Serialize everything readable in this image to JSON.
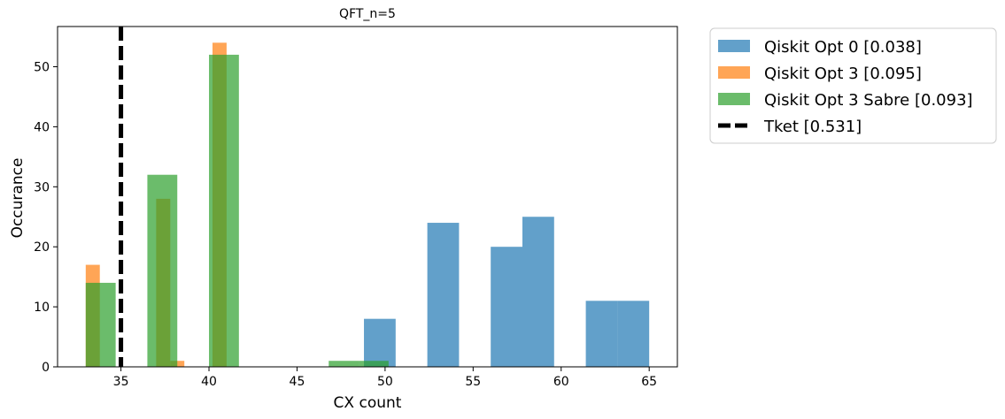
{
  "chart_data": {
    "type": "histogram",
    "title": "QFT_n=5",
    "xlabel": "CX count",
    "ylabel": "Occurance",
    "xlim": [
      31.4,
      66.6
    ],
    "ylim": [
      0,
      56.7
    ],
    "xticks": [
      35,
      40,
      45,
      50,
      55,
      60,
      65
    ],
    "yticks": [
      0,
      10,
      20,
      30,
      40,
      50
    ],
    "legend_position": "outside-right-top",
    "series": [
      {
        "name": "Qiskit Opt 0 [0.038]",
        "color": "#1f77b4",
        "alpha": 0.7,
        "bins": [
          {
            "x0": 48.8,
            "x1": 50.6,
            "count": 8
          },
          {
            "x0": 52.4,
            "x1": 54.2,
            "count": 24
          },
          {
            "x0": 56.0,
            "x1": 57.8,
            "count": 20
          },
          {
            "x0": 57.8,
            "x1": 59.6,
            "count": 25
          },
          {
            "x0": 61.4,
            "x1": 63.2,
            "count": 11
          },
          {
            "x0": 63.2,
            "x1": 65.0,
            "count": 11
          }
        ]
      },
      {
        "name": "Qiskit Opt 3 [0.095]",
        "color": "#ff7f0e",
        "alpha": 0.7,
        "bins": [
          {
            "x0": 33.0,
            "x1": 33.8,
            "count": 17
          },
          {
            "x0": 37.0,
            "x1": 37.8,
            "count": 28
          },
          {
            "x0": 37.8,
            "x1": 38.6,
            "count": 1
          },
          {
            "x0": 40.2,
            "x1": 41.0,
            "count": 54
          }
        ]
      },
      {
        "name": "Qiskit Opt 3 Sabre [0.093]",
        "color": "#2ca02c",
        "alpha": 0.7,
        "bins": [
          {
            "x0": 33.0,
            "x1": 34.7,
            "count": 14
          },
          {
            "x0": 36.5,
            "x1": 38.2,
            "count": 32
          },
          {
            "x0": 40.0,
            "x1": 41.7,
            "count": 52
          },
          {
            "x0": 46.8,
            "x1": 48.5,
            "count": 1
          },
          {
            "x0": 48.5,
            "x1": 50.2,
            "count": 1
          }
        ]
      }
    ],
    "vlines": [
      {
        "name": "Tket [0.531]",
        "x": 35,
        "color": "#000000",
        "style": "dashed"
      }
    ]
  }
}
